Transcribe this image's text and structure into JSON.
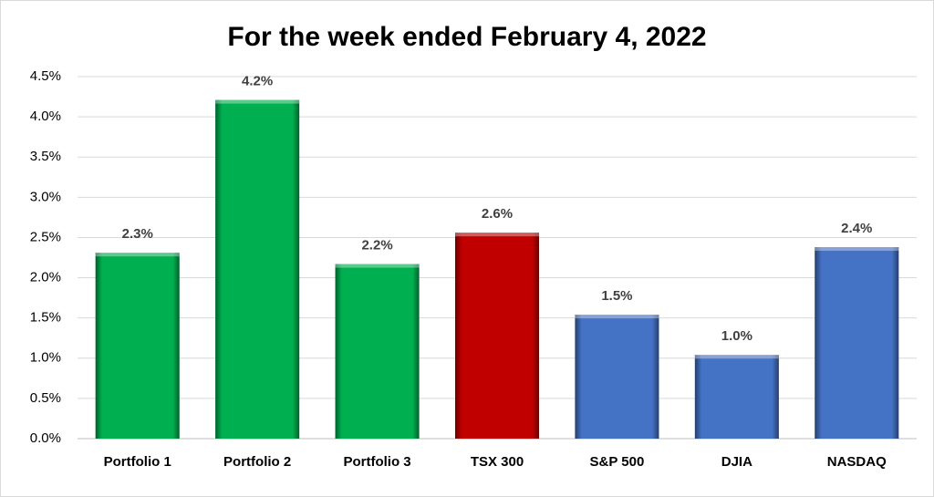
{
  "chart_data": {
    "type": "bar",
    "title": "For the week ended February 4, 2022",
    "categories": [
      "Portfolio 1",
      "Portfolio 2",
      "Portfolio 3",
      "TSX 300",
      "S&P 500",
      "DJIA",
      "NASDAQ"
    ],
    "values": [
      2.31,
      4.21,
      2.17,
      2.56,
      1.54,
      1.04,
      2.38
    ],
    "value_labels": [
      "2.3%",
      "4.2%",
      "2.2%",
      "2.6%",
      "1.5%",
      "1.0%",
      "2.4%"
    ],
    "colors": [
      "#00b050",
      "#00b050",
      "#00b050",
      "#c00000",
      "#4472c4",
      "#4472c4",
      "#4472c4"
    ],
    "ylim": [
      0,
      4.5
    ],
    "yticks": [
      {
        "value": 0,
        "label": "0.0%"
      },
      {
        "value": 0.5,
        "label": "0.5%"
      },
      {
        "value": 1,
        "label": "1.0%"
      },
      {
        "value": 1.5,
        "label": "1.5%"
      },
      {
        "value": 2,
        "label": "2.0%"
      },
      {
        "value": 2.5,
        "label": "2.5%"
      },
      {
        "value": 3,
        "label": "3.0%"
      },
      {
        "value": 3.5,
        "label": "3.5%"
      },
      {
        "value": 4,
        "label": "4.0%"
      },
      {
        "value": 4.5,
        "label": "4.5%"
      }
    ],
    "grid": true
  }
}
